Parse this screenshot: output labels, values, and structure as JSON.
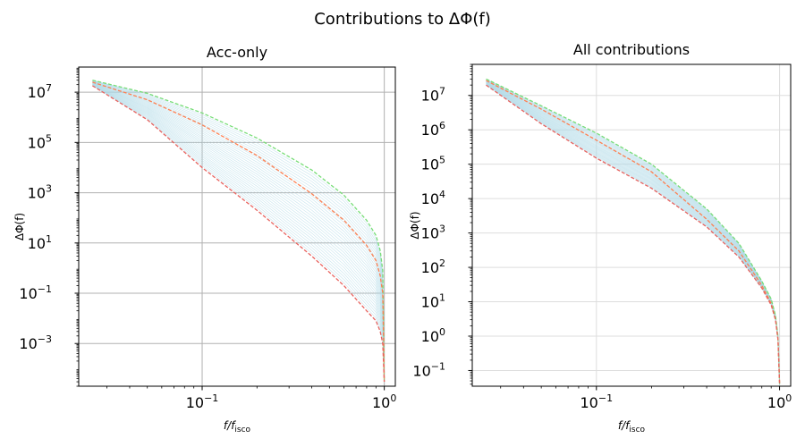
{
  "figure": {
    "suptitle": "Contributions to ΔΦ(f)"
  },
  "chart_data": [
    {
      "type": "line",
      "title": "Acc-only",
      "xlabel": "f/f_isco",
      "ylabel": "ΔΦ(f)",
      "xscale": "log",
      "yscale": "log",
      "xlim": [
        0.021,
        1.15
      ],
      "ylim": [
        2e-05,
        100000000
      ],
      "grid": true,
      "x_ticks": [
        {
          "value": 0.1,
          "base": "10",
          "exp": "−1"
        },
        {
          "value": 1,
          "base": "10",
          "exp": "0"
        }
      ],
      "y_ticks": [
        {
          "value": 0.001,
          "base": "10",
          "exp": "−3"
        },
        {
          "value": 0.1,
          "base": "10",
          "exp": "−1"
        },
        {
          "value": 10,
          "base": "10",
          "exp": "1"
        },
        {
          "value": 1000,
          "base": "10",
          "exp": "3"
        },
        {
          "value": 100000,
          "base": "10",
          "exp": "5"
        },
        {
          "value": 10000000,
          "base": "10",
          "exp": "7"
        }
      ],
      "band": {
        "color": "#add8e6",
        "count": 30
      },
      "series": [
        {
          "color": "#77dd77",
          "style": "dashed",
          "points": [
            [
              0.025,
              30000000
            ],
            [
              0.05,
              9000000
            ],
            [
              0.1,
              1500000
            ],
            [
              0.2,
              150000
            ],
            [
              0.4,
              8000
            ],
            [
              0.6,
              800
            ],
            [
              0.8,
              80
            ],
            [
              0.9,
              20
            ],
            [
              0.95,
              5
            ],
            [
              0.98,
              0.8
            ],
            [
              1.0,
              3e-05
            ]
          ]
        },
        {
          "color": "#ff7f50",
          "style": "dashed",
          "points": [
            [
              0.025,
              25000000
            ],
            [
              0.05,
              5000000
            ],
            [
              0.1,
              500000
            ],
            [
              0.2,
              30000
            ],
            [
              0.4,
              900
            ],
            [
              0.6,
              80
            ],
            [
              0.8,
              8
            ],
            [
              0.9,
              2
            ],
            [
              0.95,
              0.5
            ],
            [
              0.98,
              0.1
            ],
            [
              1.0,
              3e-05
            ]
          ]
        },
        {
          "color": "#e8635f",
          "style": "dashed",
          "points": [
            [
              0.025,
              18000000
            ],
            [
              0.05,
              800000
            ],
            [
              0.1,
              10000
            ],
            [
              0.2,
              200
            ],
            [
              0.4,
              3
            ],
            [
              0.6,
              0.2
            ],
            [
              0.8,
              0.02
            ],
            [
              0.9,
              0.008
            ],
            [
              0.95,
              0.003
            ],
            [
              0.98,
              0.001
            ],
            [
              1.0,
              3e-05
            ]
          ]
        }
      ]
    },
    {
      "type": "line",
      "title": "All contributions",
      "xlabel": "f/f_isco",
      "ylabel": "ΔΦ(f)",
      "xscale": "log",
      "yscale": "log",
      "xlim": [
        0.021,
        1.15
      ],
      "ylim": [
        0.035,
        80000000
      ],
      "grid": true,
      "x_ticks": [
        {
          "value": 0.1,
          "base": "10",
          "exp": "−1"
        },
        {
          "value": 1,
          "base": "10",
          "exp": "0"
        }
      ],
      "y_ticks": [
        {
          "value": 0.1,
          "base": "10",
          "exp": "−1"
        },
        {
          "value": 1,
          "base": "10",
          "exp": "0"
        },
        {
          "value": 10,
          "base": "10",
          "exp": "1"
        },
        {
          "value": 100,
          "base": "10",
          "exp": "2"
        },
        {
          "value": 1000,
          "base": "10",
          "exp": "3"
        },
        {
          "value": 10000,
          "base": "10",
          "exp": "4"
        },
        {
          "value": 100000,
          "base": "10",
          "exp": "5"
        },
        {
          "value": 1000000,
          "base": "10",
          "exp": "6"
        },
        {
          "value": 10000000,
          "base": "10",
          "exp": "7"
        }
      ],
      "band": {
        "color": "#add8e6",
        "count": 30
      },
      "series": [
        {
          "color": "#77dd77",
          "style": "dashed",
          "points": [
            [
              0.025,
              30000000
            ],
            [
              0.05,
              5000000
            ],
            [
              0.1,
              800000
            ],
            [
              0.2,
              100000
            ],
            [
              0.4,
              5000
            ],
            [
              0.6,
              500
            ],
            [
              0.8,
              40
            ],
            [
              0.9,
              12
            ],
            [
              0.95,
              4
            ],
            [
              0.98,
              1
            ],
            [
              1.0,
              0.04
            ]
          ]
        },
        {
          "color": "#ff7f50",
          "style": "dashed",
          "points": [
            [
              0.025,
              27000000
            ],
            [
              0.05,
              4000000
            ],
            [
              0.1,
              500000
            ],
            [
              0.2,
              60000
            ],
            [
              0.4,
              2500
            ],
            [
              0.6,
              300
            ],
            [
              0.8,
              30
            ],
            [
              0.9,
              9
            ],
            [
              0.95,
              3
            ],
            [
              0.98,
              0.8
            ],
            [
              1.0,
              0.04
            ]
          ]
        },
        {
          "color": "#e8635f",
          "style": "dashed",
          "points": [
            [
              0.025,
              20000000
            ],
            [
              0.05,
              1500000
            ],
            [
              0.1,
              150000
            ],
            [
              0.2,
              20000
            ],
            [
              0.4,
              1500
            ],
            [
              0.6,
              200
            ],
            [
              0.8,
              25
            ],
            [
              0.9,
              8
            ],
            [
              0.95,
              3
            ],
            [
              0.98,
              0.8
            ],
            [
              1.0,
              0.04
            ]
          ]
        }
      ]
    }
  ]
}
